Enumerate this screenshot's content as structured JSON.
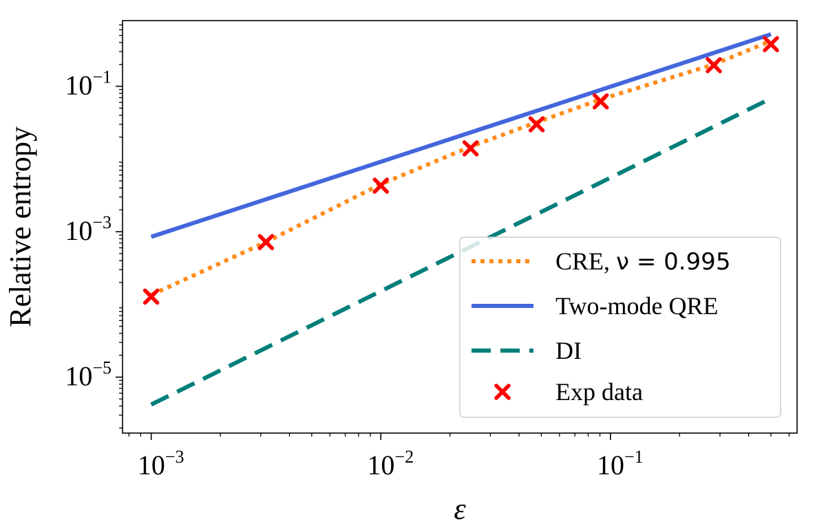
{
  "chart_data": {
    "type": "line",
    "xlabel": "ε",
    "ylabel": "Relative entropy",
    "xscale": "log",
    "yscale": "log",
    "xlim": [
      0.00075,
      0.65
    ],
    "ylim": [
      1.7e-06,
      0.8
    ],
    "grid": false,
    "legend_position": "lower-right",
    "x_ticks": [
      {
        "base": "10",
        "exp": "−3",
        "value": 0.001
      },
      {
        "base": "10",
        "exp": "−2",
        "value": 0.01
      },
      {
        "base": "10",
        "exp": "−1",
        "value": 0.1
      }
    ],
    "y_ticks": [
      {
        "base": "10",
        "exp": "−1",
        "value": 0.1
      },
      {
        "base": "10",
        "exp": "−3",
        "value": 0.001
      },
      {
        "base": "10",
        "exp": "−5",
        "value": 1e-05
      }
    ],
    "series": [
      {
        "name": "CRE, ",
        "name_math": "ν = 0.995",
        "style": "dotted",
        "color": "#ff8c1a",
        "x": [
          0.001,
          0.00316,
          0.01,
          0.0246,
          0.0477,
          0.0907,
          0.282,
          0.5
        ],
        "y": [
          0.000135,
          0.00072,
          0.0045,
          0.0148,
          0.032,
          0.066,
          0.2,
          0.42
        ]
      },
      {
        "name": "Two-mode QRE",
        "style": "solid",
        "color": "#4466dd",
        "x": [
          0.001,
          0.5
        ],
        "y": [
          0.00085,
          0.52
        ]
      },
      {
        "name": "DI",
        "style": "dashed",
        "color": "#007f7a",
        "x": [
          0.001,
          0.5
        ],
        "y": [
          4.2e-06,
          0.068
        ]
      },
      {
        "name": "Exp data",
        "style": "marker",
        "color": "#ff0000",
        "x": [
          0.001,
          0.00316,
          0.01,
          0.0246,
          0.0477,
          0.0907,
          0.282,
          0.5
        ],
        "y": [
          0.000128,
          0.00072,
          0.0043,
          0.014,
          0.03,
          0.062,
          0.195,
          0.38
        ]
      }
    ]
  }
}
